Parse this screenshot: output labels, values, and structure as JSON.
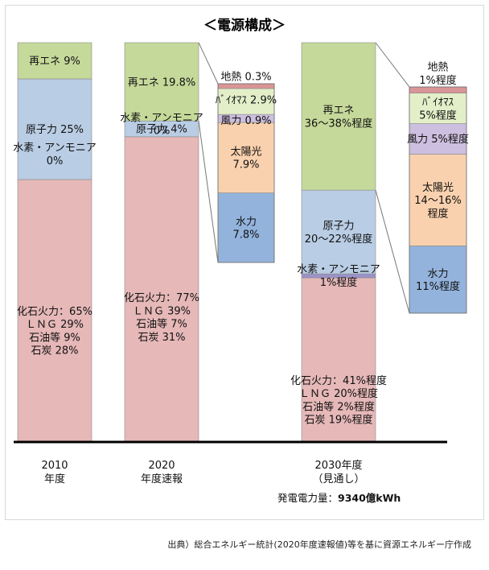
{
  "title": "＜電源構成＞",
  "source_note": "出典）総合エネルギー統計(2020年度速報値)等を基に資源エネルギー庁作成",
  "chart_data": {
    "type": "stacked-bar",
    "unit": "%",
    "ylim": [
      0,
      100
    ],
    "colors": {
      "renewable": "#c5d99a",
      "nuclear": "#b9cde4",
      "hydrogen": "#9b92c9",
      "fossil": "#e6b8b8",
      "geothermal": "#d99597",
      "biomass": "#e3efc9",
      "wind": "#cdbfdf",
      "solar": "#f9d1ae",
      "hydro": "#93b3dc",
      "axis": "#000000",
      "connector": "#777777"
    },
    "bars": [
      {
        "category_lines": [
          "2010",
          "年度"
        ],
        "segments": [
          {
            "key": "fossil",
            "value": 65,
            "label_lines": [
              "化石火力：65%",
              "ＬＮＧ 29%",
              "石油等  9%",
              "石炭  28%"
            ]
          },
          {
            "key": "hydrogen",
            "value": 0,
            "label_lines": [
              "水素・アンモニア",
              "0%"
            ]
          },
          {
            "key": "nuclear",
            "value": 25,
            "label_lines": [
              "原子力  25%"
            ]
          },
          {
            "key": "renewable",
            "value": 9,
            "label_lines": [
              "再エネ  9%"
            ]
          }
        ]
      },
      {
        "category_lines": [
          "2020",
          "年度速報"
        ],
        "segments": [
          {
            "key": "fossil",
            "value": 77,
            "label_lines": [
              "化石火力：77%",
              "ＬＮＧ 39%",
              "石油等  7%",
              "石炭  31%"
            ]
          },
          {
            "key": "hydrogen",
            "value": 0,
            "label_lines": [
              "水素・アンモニア",
              "0%"
            ]
          },
          {
            "key": "nuclear",
            "value": 4,
            "label_lines": [
              "原子力  4%"
            ]
          },
          {
            "key": "renewable",
            "value": 19.8,
            "label_lines": [
              "再エネ  19.8%"
            ]
          }
        ],
        "breakdown": {
          "of": "renewable",
          "segments": [
            {
              "key": "hydro",
              "value": 7.8,
              "label_lines": [
                "水力",
                "7.8%"
              ]
            },
            {
              "key": "solar",
              "value": 7.9,
              "label_lines": [
                "太陽光",
                "7.9%"
              ]
            },
            {
              "key": "wind",
              "value": 0.9,
              "label_lines": [
                "風力  0.9%"
              ]
            },
            {
              "key": "biomass",
              "value": 2.9,
              "label_lines": [
                "ﾊﾞｲｵﾏｽ  2.9%"
              ]
            },
            {
              "key": "geothermal",
              "value": 0.3,
              "label_lines": [
                "地熱  0.3%"
              ]
            }
          ]
        }
      },
      {
        "category_lines": [
          "2030年度",
          "（見通し）"
        ],
        "segments": [
          {
            "key": "fossil",
            "value": 41,
            "label_lines": [
              "化石火力：41%程度",
              "ＬＮＧ 20%程度",
              "石油等  2%程度",
              "石炭  19%程度"
            ]
          },
          {
            "key": "hydrogen",
            "value": 1,
            "label_lines": [
              "水素・アンモニア",
              "1%程度"
            ]
          },
          {
            "key": "nuclear",
            "value": 21,
            "label_lines": [
              "原子力",
              "20～22%程度"
            ]
          },
          {
            "key": "renewable",
            "value": 37,
            "label_lines": [
              "再エネ",
              "36～38%程度"
            ]
          }
        ],
        "breakdown": {
          "of": "renewable",
          "segments": [
            {
              "key": "hydro",
              "value": 11,
              "label_lines": [
                "水力",
                "11%程度"
              ]
            },
            {
              "key": "solar",
              "value": 15,
              "label_lines": [
                "太陽光",
                "14～16%",
                "程度"
              ]
            },
            {
              "key": "wind",
              "value": 5,
              "label_lines": [
                "風力  5%程度"
              ]
            },
            {
              "key": "biomass",
              "value": 5,
              "label_lines": [
                "ﾊﾞｲｵﾏｽ",
                "5%程度"
              ]
            },
            {
              "key": "geothermal",
              "value": 1,
              "label_lines": [
                "地熱",
                "1%程度"
              ]
            }
          ]
        },
        "footnote": {
          "label": "発電電力量：",
          "value": "9340億kWh"
        }
      }
    ]
  }
}
